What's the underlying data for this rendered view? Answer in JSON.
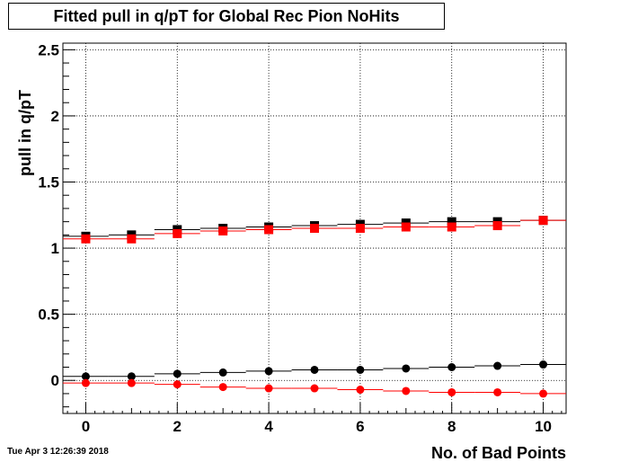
{
  "title": "Fitted pull in q/pT for Global Rec Pion NoHits",
  "timestamp": "Tue Apr  3 12:26:39 2018",
  "colors": {
    "black_series": "#000000",
    "red_series": "#ff0000",
    "grid": "#000000",
    "background": "#ffffff"
  },
  "chart_data": {
    "type": "scatter",
    "title": "Fitted pull in q/pT for Global Rec Pion NoHits",
    "xlabel": "No. of Bad Points",
    "ylabel": "pull in q/pT",
    "xlim": [
      -0.5,
      10.5
    ],
    "ylim": [
      -0.25,
      2.55
    ],
    "grid": true,
    "xticks": [
      0,
      2,
      4,
      6,
      8,
      10
    ],
    "xtick_labels": [
      "0",
      "2",
      "4",
      "6",
      "8",
      "10"
    ],
    "yticks": [
      0,
      0.5,
      1,
      1.5,
      2,
      2.5
    ],
    "ytick_labels": [
      "0",
      "0.5",
      "1",
      "1.5",
      "2",
      "2.5"
    ],
    "x": [
      0,
      1,
      2,
      3,
      4,
      5,
      6,
      7,
      8,
      9,
      10
    ],
    "series": [
      {
        "color": "#000000",
        "marker": "square",
        "values": [
          1.09,
          1.1,
          1.14,
          1.15,
          1.16,
          1.17,
          1.18,
          1.19,
          1.2,
          1.2,
          1.21
        ]
      },
      {
        "color": "#ff0000",
        "marker": "square",
        "values": [
          1.07,
          1.07,
          1.11,
          1.13,
          1.14,
          1.15,
          1.15,
          1.16,
          1.16,
          1.17,
          1.21
        ]
      },
      {
        "color": "#000000",
        "marker": "circle",
        "values": [
          0.03,
          0.03,
          0.05,
          0.06,
          0.07,
          0.08,
          0.08,
          0.09,
          0.1,
          0.11,
          0.12
        ]
      },
      {
        "color": "#ff0000",
        "marker": "circle",
        "values": [
          -0.02,
          -0.02,
          -0.03,
          -0.05,
          -0.06,
          -0.06,
          -0.07,
          -0.08,
          -0.09,
          -0.09,
          -0.1
        ]
      }
    ]
  }
}
